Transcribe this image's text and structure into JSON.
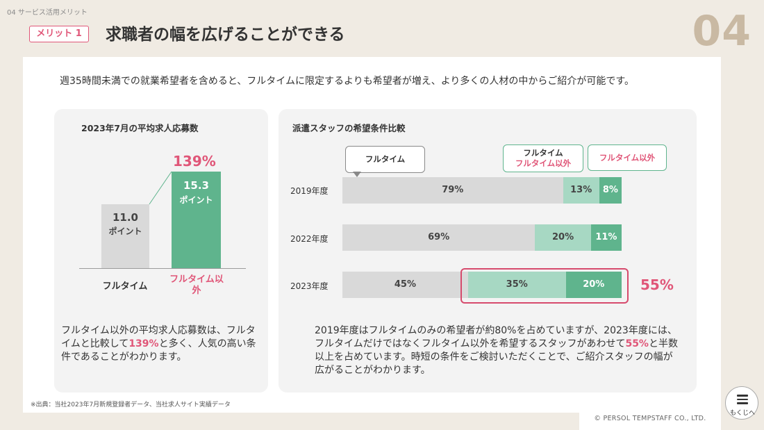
{
  "header": {
    "section_label": "04 サービス活用メリット",
    "badge": "メリット 1",
    "title": "求職者の幅を広げることができる",
    "page_number": "04"
  },
  "intro": "週35時間未満での就業希望者を含めると、フルタイムに限定するよりも希望者が増え、より多くの人材の中からご紹介が可能です。",
  "left_card": {
    "title": "2023年7月の平均求人応募数",
    "increase_label": "139%",
    "description_parts": [
      "フルタイム以外の平均求人応募数は、フルタイムと比較して",
      "139%",
      "と多く、人気の高い条件であることがわかります。"
    ]
  },
  "right_card": {
    "title": "派遣スタッフの希望条件比較",
    "callouts": {
      "fulltime": "フルタイム",
      "both_line1": "フルタイム",
      "both_line2": "フルタイム以外",
      "non_fulltime": "フルタイム以外"
    },
    "highlight_total": "55%",
    "description_parts": [
      "2019年度はフルタイムのみの希望者が約80%を占めていますが、2023年度には、フルタイムだけではなくフルタイム以外を希望するスタッフがあわせて",
      "55%",
      "と半数以上を占めています。時短の条件をご検討いただくことで、ご紹介スタッフの幅が広がることがわかります。"
    ]
  },
  "chart_data": [
    {
      "type": "bar",
      "title": "2023年7月の平均求人応募数",
      "categories": [
        "フルタイム",
        "フルタイム以外"
      ],
      "values": [
        11.0,
        15.3
      ],
      "value_labels": [
        "11.0",
        "15.3"
      ],
      "unit": "ポイント",
      "colors": [
        "#d9d9d9",
        "#5fb48d"
      ]
    },
    {
      "type": "bar",
      "stacked": "horizontal-100",
      "title": "派遣スタッフの希望条件比較",
      "categories": [
        "2019年度",
        "2022年度",
        "2023年度"
      ],
      "series": [
        {
          "name": "フルタイム",
          "values": [
            79,
            69,
            45
          ],
          "color": "#d9d9d9"
        },
        {
          "name": "フルタイム・フルタイム以外",
          "values": [
            13,
            20,
            35
          ],
          "color": "#a7d8c3"
        },
        {
          "name": "フルタイム以外",
          "values": [
            8,
            11,
            20
          ],
          "color": "#5fb48d"
        }
      ],
      "labels": [
        [
          "79%",
          "13%",
          "8%"
        ],
        [
          "69%",
          "20%",
          "11%"
        ],
        [
          "45%",
          "35%",
          "20%"
        ]
      ]
    }
  ],
  "footer": {
    "footnote": "※出典：当社2023年7月新規登録者データ、当社求人サイト実績データ",
    "copyright": "© PERSOL TEMPSTAFF CO., LTD.",
    "toc_label": "もくじへ"
  }
}
